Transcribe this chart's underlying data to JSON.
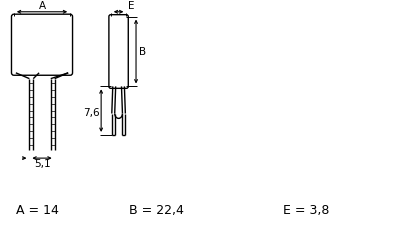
{
  "bg_color": "#ffffff",
  "line_color": "#000000",
  "fig_width": 4.0,
  "fig_height": 2.25,
  "dpi": 100,
  "label_A": "A = 14",
  "label_B": "B = 22,4",
  "label_E": "E = 3,8",
  "dim_A": "A",
  "dim_B": "B",
  "dim_E": "E",
  "dim_76": "7,6",
  "dim_51": "5,1"
}
